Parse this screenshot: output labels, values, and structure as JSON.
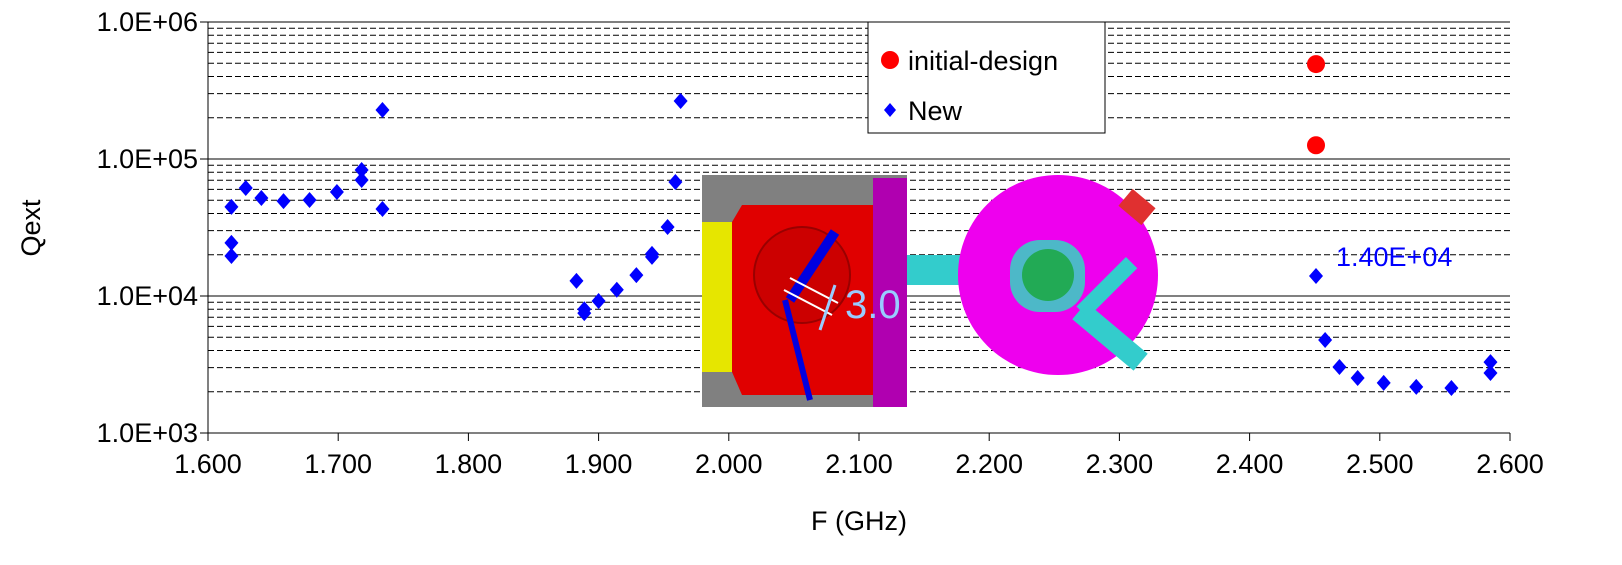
{
  "chart_data": {
    "type": "scatter",
    "x_label": "F (GHz)",
    "y_label": "Qext",
    "y_log": true,
    "grid": true,
    "minor_grid": true,
    "legend": "top-right",
    "xlim": [
      1.6,
      2.6
    ],
    "xticks": [
      {
        "value": 1.6,
        "label": "1.600"
      },
      {
        "value": 1.7,
        "label": "1.700"
      },
      {
        "value": 1.8,
        "label": "1.800"
      },
      {
        "value": 1.9,
        "label": "1.900"
      },
      {
        "value": 2.0,
        "label": "2.000"
      },
      {
        "value": 2.1,
        "label": "2.100"
      },
      {
        "value": 2.2,
        "label": "2.200"
      },
      {
        "value": 2.3,
        "label": "2.300"
      },
      {
        "value": 2.4,
        "label": "2.400"
      },
      {
        "value": 2.5,
        "label": "2.500"
      },
      {
        "value": 2.6,
        "label": "2.600"
      }
    ],
    "ylim": [
      1000,
      1000000
    ],
    "yticks": [
      {
        "value": 1000,
        "label": "1.0E+03"
      },
      {
        "value": 10000,
        "label": "1.0E+04"
      },
      {
        "value": 100000,
        "label": "1.0E+05"
      },
      {
        "value": 1000000,
        "label": "1.0E+06"
      }
    ],
    "series": [
      {
        "name": "initial-design",
        "color": "#ff0000",
        "marker": "circle",
        "x": [
          2.451,
          2.451
        ],
        "values": [
          493000,
          126000
        ]
      },
      {
        "name": "New",
        "color": "#0000ff",
        "marker": "diamond",
        "x": [
          1.618,
          1.618,
          1.618,
          1.629,
          1.641,
          1.658,
          1.678,
          1.699,
          1.718,
          1.718,
          1.734,
          1.734,
          1.883,
          1.889,
          1.889,
          1.9,
          1.914,
          1.929,
          1.941,
          1.941,
          1.953,
          1.959,
          1.963,
          2.451,
          2.458,
          2.469,
          2.483,
          2.503,
          2.528,
          2.555,
          2.585,
          2.585
        ],
        "values": [
          44700,
          24400,
          19600,
          61400,
          51900,
          49300,
          50200,
          57400,
          83200,
          70300,
          228000,
          43200,
          12900,
          7500,
          8000,
          9200,
          11100,
          14200,
          19300,
          20300,
          31900,
          67900,
          265000,
          14000,
          4770,
          3030,
          2520,
          2320,
          2170,
          2130,
          2740,
          3290
        ]
      }
    ],
    "annotations": [
      {
        "text": "1.40E+04",
        "x": 2.451,
        "y": 14000
      },
      {
        "text": "3.0"
      }
    ]
  }
}
